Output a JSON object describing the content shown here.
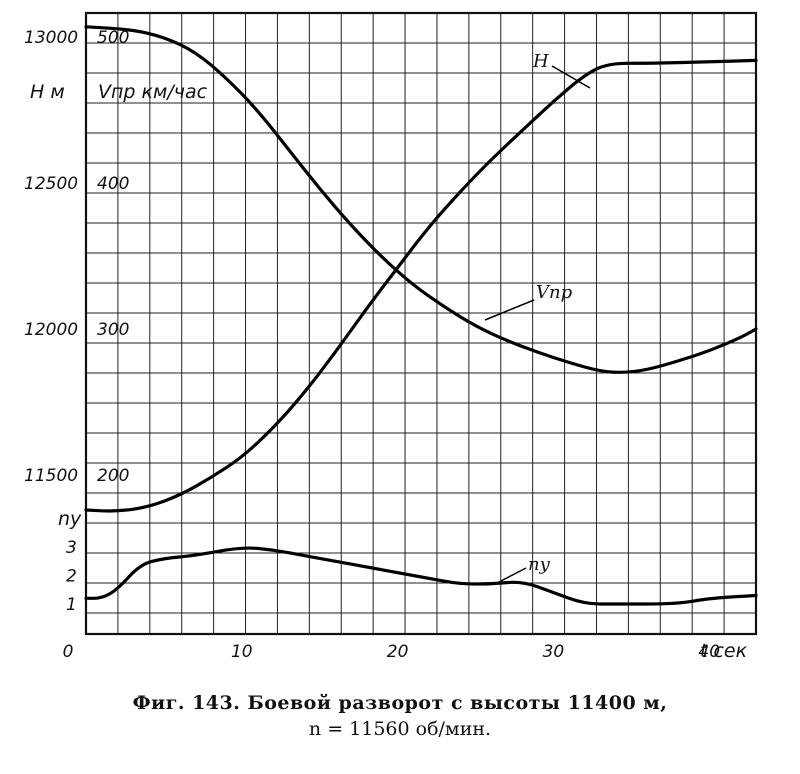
{
  "caption": {
    "line1": "Фиг. 143. Боевой разворот с высоты 11400 м,",
    "line2": "n = 11560 об/мин."
  },
  "chart_data": {
    "type": "line",
    "grid": true,
    "x": {
      "ticks": [
        0,
        10,
        20,
        30,
        40
      ],
      "tick_labels": [
        "0",
        "10",
        "20",
        "30",
        "40"
      ],
      "unit_label": "t сек",
      "range": [
        0,
        43
      ]
    },
    "h_axis": {
      "unit_label": "Н м",
      "ticks": [
        11500,
        12000,
        12500,
        13000
      ],
      "tick_labels": [
        "11500",
        "12000",
        "12500",
        "13000"
      ],
      "range": [
        11380,
        13030
      ]
    },
    "v_axis": {
      "unit_label": "Vпр км/час",
      "ticks": [
        200,
        300,
        400,
        500
      ],
      "tick_labels": [
        "200",
        "300",
        "400",
        "500"
      ],
      "range": [
        175,
        510
      ]
    },
    "n_axis": {
      "unit_label": "ny",
      "ticks": [
        1,
        2,
        3
      ],
      "tick_labels": [
        "1",
        "2",
        "3"
      ],
      "range": [
        0,
        3
      ]
    },
    "series": [
      {
        "name": "Н",
        "axis": "h_axis",
        "points": [
          [
            0,
            11380
          ],
          [
            2,
            11375
          ],
          [
            4,
            11390
          ],
          [
            6,
            11430
          ],
          [
            8,
            11490
          ],
          [
            10,
            11560
          ],
          [
            12,
            11660
          ],
          [
            14,
            11780
          ],
          [
            16,
            11920
          ],
          [
            18,
            12070
          ],
          [
            20,
            12210
          ],
          [
            22,
            12350
          ],
          [
            24,
            12470
          ],
          [
            26,
            12580
          ],
          [
            28,
            12680
          ],
          [
            30,
            12780
          ],
          [
            32,
            12870
          ],
          [
            33.5,
            12910
          ],
          [
            36,
            12910
          ],
          [
            40,
            12915
          ],
          [
            43,
            12920
          ]
        ]
      },
      {
        "name": "Vпр",
        "axis": "v_axis",
        "points": [
          [
            0,
            507
          ],
          [
            3,
            505
          ],
          [
            5,
            500
          ],
          [
            7,
            490
          ],
          [
            9,
            472
          ],
          [
            11,
            450
          ],
          [
            13,
            423
          ],
          [
            15,
            396
          ],
          [
            17,
            371
          ],
          [
            19,
            349
          ],
          [
            21,
            330
          ],
          [
            23,
            315
          ],
          [
            25,
            302
          ],
          [
            27,
            292
          ],
          [
            29,
            284
          ],
          [
            31,
            277
          ],
          [
            33,
            271
          ],
          [
            34.5,
            270
          ],
          [
            36,
            272
          ],
          [
            38,
            278
          ],
          [
            40,
            285
          ],
          [
            42,
            294
          ],
          [
            43,
            300
          ]
        ]
      },
      {
        "name": "ny",
        "axis": "n_axis",
        "points": [
          [
            0,
            1.2
          ],
          [
            1,
            1.2
          ],
          [
            2,
            1.5
          ],
          [
            3.5,
            2.4
          ],
          [
            5,
            2.6
          ],
          [
            7,
            2.7
          ],
          [
            10,
            3.0
          ],
          [
            12,
            2.9
          ],
          [
            14,
            2.7
          ],
          [
            16,
            2.5
          ],
          [
            18,
            2.3
          ],
          [
            20,
            2.1
          ],
          [
            22,
            1.9
          ],
          [
            24,
            1.7
          ],
          [
            26,
            1.7
          ],
          [
            28,
            1.8
          ],
          [
            30,
            1.4
          ],
          [
            32,
            1.0
          ],
          [
            34,
            1.0
          ],
          [
            38,
            1.0
          ],
          [
            40,
            1.2
          ],
          [
            43,
            1.3
          ]
        ]
      }
    ]
  }
}
